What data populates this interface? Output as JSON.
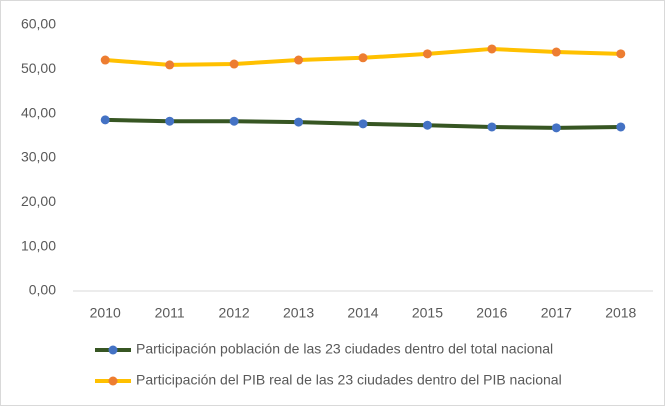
{
  "chart_data": {
    "type": "line",
    "categories": [
      "2010",
      "2011",
      "2012",
      "2013",
      "2014",
      "2015",
      "2016",
      "2017",
      "2018"
    ],
    "series": [
      {
        "name": "Participación población de las 23 ciudades dentro del total nacional",
        "color": "#375623",
        "marker_color": "#4472c4",
        "values": [
          38.6,
          38.3,
          38.3,
          38.1,
          37.7,
          37.4,
          37.0,
          36.8,
          37.0
        ]
      },
      {
        "name": "Participación del PIB real de las 23 ciudades dentro del PIB nacional",
        "color": "#ffc000",
        "marker_color": "#ed7d31",
        "values": [
          52.1,
          51.0,
          51.2,
          52.1,
          52.6,
          53.5,
          54.6,
          53.9,
          53.5
        ]
      }
    ],
    "ylim": [
      0,
      60
    ],
    "yticks": [
      {
        "value": 0,
        "label": "0,00"
      },
      {
        "value": 10,
        "label": "10,00"
      },
      {
        "value": 20,
        "label": "20,00"
      },
      {
        "value": 30,
        "label": "30,00"
      },
      {
        "value": 40,
        "label": "40,00"
      },
      {
        "value": 50,
        "label": "50,00"
      },
      {
        "value": 60,
        "label": "60,00"
      }
    ],
    "grid": false,
    "legend": "bottom"
  }
}
